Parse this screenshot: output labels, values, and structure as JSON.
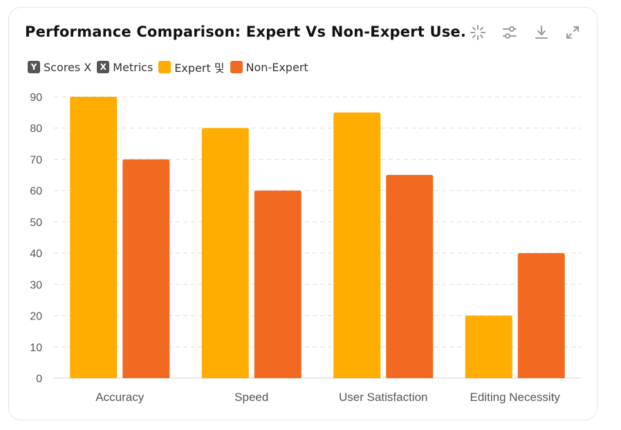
{
  "header": {
    "title": "Performance Comparison: Expert Vs Non-Expert Use..."
  },
  "legend": {
    "items": [
      {
        "marker": "Y",
        "label": "Scores X",
        "color": "#555555"
      },
      {
        "marker": "X",
        "label": "Metrics",
        "color": "#555555"
      },
      {
        "marker": "",
        "label": "Expert 및",
        "color": "#FFAD00"
      },
      {
        "marker": "",
        "label": "Non-Expert",
        "color": "#F26A21"
      }
    ]
  },
  "toolbar": {
    "icons": [
      "sparkle-icon",
      "sliders-icon",
      "download-icon",
      "expand-icon"
    ]
  },
  "chart_data": {
    "type": "bar",
    "title": "Performance Comparison: Expert Vs Non-Expert Use...",
    "xlabel": "Metrics",
    "ylabel": "Scores",
    "categories": [
      "Accuracy",
      "Speed",
      "User Satisfaction",
      "Editing Necessity"
    ],
    "series": [
      {
        "name": "Expert",
        "color": "#FFAD00",
        "values": [
          90,
          80,
          85,
          20
        ]
      },
      {
        "name": "Non-Expert",
        "color": "#F26A21",
        "values": [
          70,
          60,
          65,
          40
        ]
      }
    ],
    "ylim": [
      0,
      90
    ],
    "yticks": [
      0,
      10,
      20,
      30,
      40,
      50,
      60,
      70,
      80,
      90
    ],
    "grid": true,
    "legend_position": "top-left"
  }
}
